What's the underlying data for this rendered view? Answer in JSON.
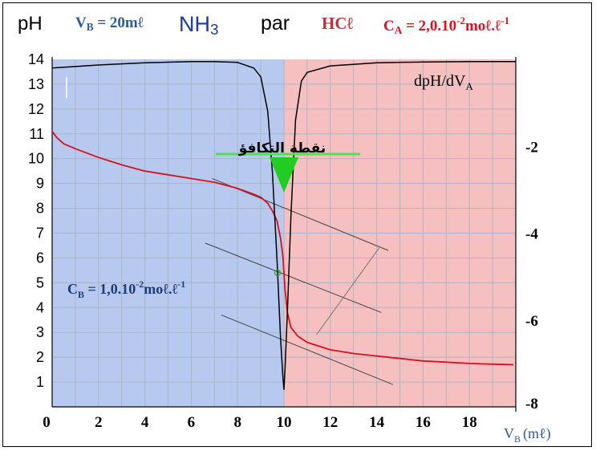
{
  "header": {
    "y_axis_label": "pH",
    "vb_prefix": "V",
    "vb_sub": "B",
    "vb_value": " = 20mℓ",
    "base_name": "NH",
    "base_sub": "3",
    "par": "par",
    "acid_name": "HCℓ",
    "ca_prefix": "C",
    "ca_sub": "A",
    "ca_value": " = 2,0.10",
    "ca_exp": "-2",
    "ca_unit": "moℓ.ℓ",
    "ca_unit_exp": "-1"
  },
  "colors": {
    "before_equivalence_region": "#b8c9ef",
    "after_equivalence_region": "#f7c0c0",
    "ph_curve": "#d8101c",
    "derivative_curve": "#000000",
    "equivalence_marker": "#22cc22",
    "tangent_lines": "#444444",
    "cb_text": "#1e3a78"
  },
  "chart_data": {
    "type": "line",
    "xlabel": "V",
    "xlabel_sub": "B",
    "xlabel_unit": "(mℓ)",
    "xlim": [
      0,
      20
    ],
    "ylim": [
      0,
      14
    ],
    "y2lim": [
      -8,
      0
    ],
    "grid": true,
    "x_ticks": [
      "0",
      "2",
      "4",
      "6",
      "8",
      "10",
      "12",
      "14",
      "16",
      "18"
    ],
    "y_ticks": [
      "1",
      "2",
      "3",
      "4",
      "5",
      "6",
      "7",
      "8",
      "9",
      "10",
      "11",
      "12",
      "13",
      "14"
    ],
    "y2_ticks": [
      {
        "label": "-2",
        "value": -2
      },
      {
        "label": "-4",
        "value": -4
      },
      {
        "label": "-6",
        "value": -6
      },
      {
        "label": "-8",
        "value": -8
      }
    ],
    "regions": [
      {
        "x": [
          0,
          10
        ],
        "color": "#b8c9ef"
      },
      {
        "x": [
          10,
          20
        ],
        "color": "#f7c0c0"
      }
    ],
    "series": [
      {
        "axis": "left",
        "color": "#d8101c",
        "points": [
          [
            0,
            11.1
          ],
          [
            0.2,
            10.85
          ],
          [
            0.5,
            10.6
          ],
          [
            1,
            10.4
          ],
          [
            2,
            10.05
          ],
          [
            3,
            9.75
          ],
          [
            4,
            9.5
          ],
          [
            5,
            9.35
          ],
          [
            6,
            9.2
          ],
          [
            7,
            9.05
          ],
          [
            8,
            8.8
          ],
          [
            8.6,
            8.6
          ],
          [
            9,
            8.45
          ],
          [
            9.3,
            8.2
          ],
          [
            9.5,
            7.9
          ],
          [
            9.7,
            7.5
          ],
          [
            9.85,
            6.8
          ],
          [
            9.95,
            6.1
          ],
          [
            10,
            5.4
          ],
          [
            10.05,
            4.7
          ],
          [
            10.15,
            3.8
          ],
          [
            10.3,
            3.2
          ],
          [
            10.6,
            2.85
          ],
          [
            11,
            2.6
          ],
          [
            12,
            2.3
          ],
          [
            13,
            2.15
          ],
          [
            14,
            2.05
          ],
          [
            15,
            1.95
          ],
          [
            16,
            1.85
          ],
          [
            17,
            1.8
          ],
          [
            18,
            1.75
          ],
          [
            19,
            1.72
          ],
          [
            19.9,
            1.7
          ]
        ]
      },
      {
        "name": "dpH/dV",
        "name_sub": "A",
        "axis": "right",
        "color": "#000000",
        "points": [
          [
            0,
            -0.2
          ],
          [
            2,
            -0.13
          ],
          [
            4,
            -0.08
          ],
          [
            6,
            -0.05
          ],
          [
            7,
            -0.05
          ],
          [
            8,
            -0.07
          ],
          [
            8.7,
            -0.2
          ],
          [
            9,
            -0.4
          ],
          [
            9.3,
            -1.2
          ],
          [
            9.5,
            -2.6
          ],
          [
            9.7,
            -4.6
          ],
          [
            9.85,
            -6.4
          ],
          [
            9.95,
            -7.3
          ],
          [
            10,
            -7.6
          ],
          [
            10.05,
            -7.1
          ],
          [
            10.15,
            -5.8
          ],
          [
            10.3,
            -3.6
          ],
          [
            10.5,
            -1.4
          ],
          [
            10.75,
            -0.5
          ],
          [
            11,
            -0.3
          ],
          [
            12,
            -0.15
          ],
          [
            14,
            -0.08
          ],
          [
            16,
            -0.06
          ],
          [
            18,
            -0.05
          ],
          [
            20,
            -0.05
          ]
        ]
      }
    ],
    "annotations": [
      {
        "text": "نقطة التكافؤ",
        "x": 10,
        "y": 10.1
      },
      {
        "text_prefix": "C",
        "text_sub": "B",
        "text_value": " = 1,0.10",
        "text_exp": "-2",
        "text_unit": "moℓ.ℓ",
        "text_unit_exp": "-1",
        "x": 1,
        "y": 5
      }
    ],
    "tangent_lines": [
      [
        [
          6.9,
          9.2
        ],
        [
          14.5,
          6.3
        ]
      ],
      [
        [
          6.6,
          6.6
        ],
        [
          14.2,
          3.8
        ]
      ],
      [
        [
          7.3,
          3.7
        ],
        [
          14.7,
          0.9
        ]
      ]
    ],
    "equivalence_point": [
      10,
      5.4
    ]
  }
}
